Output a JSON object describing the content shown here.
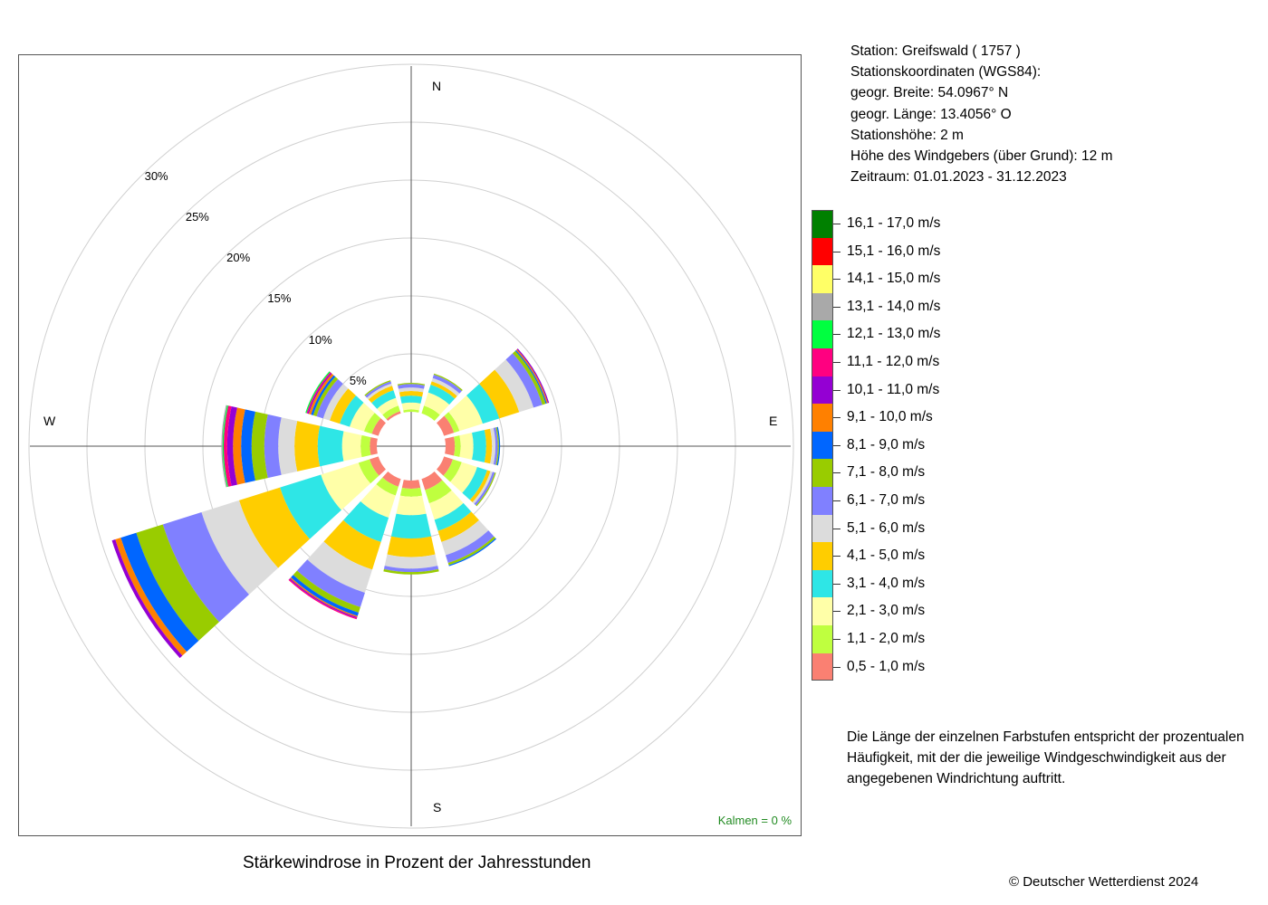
{
  "station": {
    "lines": [
      "Station:  Greifswald  ( 1757 )",
      "Stationskoordinaten (WGS84):",
      "geogr. Breite: 54.0967° N",
      "geogr. Länge: 13.4056° O",
      "Stationshöhe: 2 m",
      "Höhe des Windgebers (über Grund): 12 m",
      "Zeitraum: 01.01.2023 - 31.12.2023"
    ]
  },
  "legend_note": "Die Länge der einzelnen Farbstufen entspricht der prozentualen Häufigkeit, mit der die jeweilige Windgeschwindigkeit aus der angegebenen Windrichtung auftritt.",
  "copyright": "© Deutscher Wetterdienst  2024",
  "chart_data": {
    "type": "windrose",
    "title": "Stärkewindrose in Prozent der Jahresstunden",
    "calm_label": "Kalmen  =  0 %",
    "cardinals": {
      "N": "N",
      "E": "E",
      "S": "S",
      "W": "W"
    },
    "ring_labels": [
      "5%",
      "10%",
      "15%",
      "20%",
      "25%",
      "30%"
    ],
    "ring_values": [
      5,
      10,
      15,
      20,
      25,
      30
    ],
    "grid": true,
    "legend_position": "right",
    "speed_classes": [
      {
        "label": "0,5 - 1,0 m/s",
        "color": "#fa8072"
      },
      {
        "label": "1,1 - 2,0 m/s",
        "color": "#bfff3f"
      },
      {
        "label": "2,1 - 3,0 m/s",
        "color": "#ffffa8"
      },
      {
        "label": "3,1 - 4,0 m/s",
        "color": "#2ee6e6"
      },
      {
        "label": "4,1 - 5,0 m/s",
        "color": "#ffcd00"
      },
      {
        "label": "5,1 - 6,0 m/s",
        "color": "#dcdcdc"
      },
      {
        "label": "6,1 - 7,0 m/s",
        "color": "#8080ff"
      },
      {
        "label": "7,1 - 8,0 m/s",
        "color": "#99cc00"
      },
      {
        "label": "8,1 - 9,0 m/s",
        "color": "#0066ff"
      },
      {
        "label": "9,1 - 10,0 m/s",
        "color": "#ff8000"
      },
      {
        "label": "10,1 - 11,0 m/s",
        "color": "#9400d3"
      },
      {
        "label": "11,1 - 12,0 m/s",
        "color": "#ff0080"
      },
      {
        "label": "12,1 - 13,0 m/s",
        "color": "#00ff40"
      },
      {
        "label": "13,1 - 14,0 m/s",
        "color": "#a9a9a9"
      },
      {
        "label": "14,1 - 15,0 m/s",
        "color": "#ffff66"
      },
      {
        "label": "15,1 - 16,0 m/s",
        "color": "#ff0000"
      },
      {
        "label": "16,1 - 17,0 m/s",
        "color": "#008000"
      }
    ],
    "directions_deg": [
      0,
      30,
      60,
      90,
      120,
      150,
      180,
      210,
      240,
      270,
      300,
      330
    ],
    "series": [
      {
        "direction": "N",
        "deg": 0,
        "values": [
          0.0,
          0.2,
          0.6,
          0.6,
          0.4,
          0.3,
          0.3,
          0.1,
          0.0,
          0.0,
          0.0,
          0.0,
          0.0,
          0.0,
          0.0,
          0.0,
          0.0
        ]
      },
      {
        "direction": "30",
        "deg": 30,
        "values": [
          0.0,
          0.7,
          1.2,
          0.7,
          0.3,
          0.3,
          0.3,
          0.1,
          0.0,
          0.0,
          0.0,
          0.0,
          0.0,
          0.0,
          0.0,
          0.0,
          0.0
        ]
      },
      {
        "direction": "60",
        "deg": 60,
        "values": [
          0.9,
          0.5,
          2.1,
          1.5,
          1.8,
          1.3,
          0.8,
          0.3,
          0.1,
          0.1,
          0.1,
          0.0,
          0.0,
          0.0,
          0.0,
          0.0,
          0.0
        ]
      },
      {
        "direction": "E",
        "deg": 90,
        "values": [
          0.8,
          0.5,
          1.1,
          1.1,
          0.5,
          0.3,
          0.2,
          0.1,
          0.1,
          0.0,
          0.0,
          0.0,
          0.0,
          0.0,
          0.0,
          0.0,
          0.0
        ]
      },
      {
        "direction": "120",
        "deg": 120,
        "values": [
          0.8,
          0.8,
          1.4,
          0.9,
          0.3,
          0.2,
          0.2,
          0.1,
          0.0,
          0.0,
          0.0,
          0.0,
          0.0,
          0.0,
          0.0,
          0.0,
          0.0
        ]
      },
      {
        "direction": "150",
        "deg": 150,
        "values": [
          1.0,
          1.2,
          1.5,
          1.0,
          1.0,
          1.2,
          0.7,
          0.2,
          0.1,
          0.0,
          0.0,
          0.0,
          0.0,
          0.0,
          0.0,
          0.0,
          0.0
        ]
      },
      {
        "direction": "S",
        "deg": 180,
        "values": [
          0.7,
          0.7,
          1.6,
          2.0,
          1.6,
          1.0,
          0.3,
          0.2,
          0.0,
          0.0,
          0.0,
          0.0,
          0.0,
          0.0,
          0.0,
          0.0,
          0.0
        ]
      },
      {
        "direction": "210",
        "deg": 210,
        "values": [
          0.7,
          0.8,
          2.0,
          2.2,
          2.5,
          2.1,
          1.3,
          0.5,
          0.3,
          0.1,
          0.1,
          0.1,
          0.0,
          0.0,
          0.0,
          0.0,
          0.0
        ]
      },
      {
        "direction": "240",
        "deg": 240,
        "values": [
          0.8,
          1.0,
          3.4,
          3.7,
          3.7,
          3.4,
          3.5,
          2.4,
          1.4,
          0.5,
          0.3,
          0.0,
          0.0,
          0.0,
          0.0,
          0.0,
          0.0
        ]
      },
      {
        "direction": "W",
        "deg": 270,
        "values": [
          0.6,
          0.8,
          1.6,
          2.1,
          2.0,
          1.4,
          1.2,
          1.1,
          0.9,
          0.7,
          0.5,
          0.3,
          0.1,
          0.1,
          0.0,
          0.0,
          0.0
        ]
      },
      {
        "direction": "300",
        "deg": 300,
        "values": [
          0.6,
          0.7,
          1.3,
          0.9,
          0.9,
          0.6,
          0.6,
          0.3,
          0.2,
          0.2,
          0.1,
          0.1,
          0.1,
          0.0,
          0.0,
          0.0,
          0.0
        ]
      },
      {
        "direction": "330",
        "deg": 330,
        "values": [
          0.2,
          0.5,
          0.7,
          0.7,
          0.4,
          0.2,
          0.2,
          0.1,
          0.0,
          0.0,
          0.0,
          0.0,
          0.0,
          0.0,
          0.0,
          0.0,
          0.0
        ]
      }
    ]
  }
}
